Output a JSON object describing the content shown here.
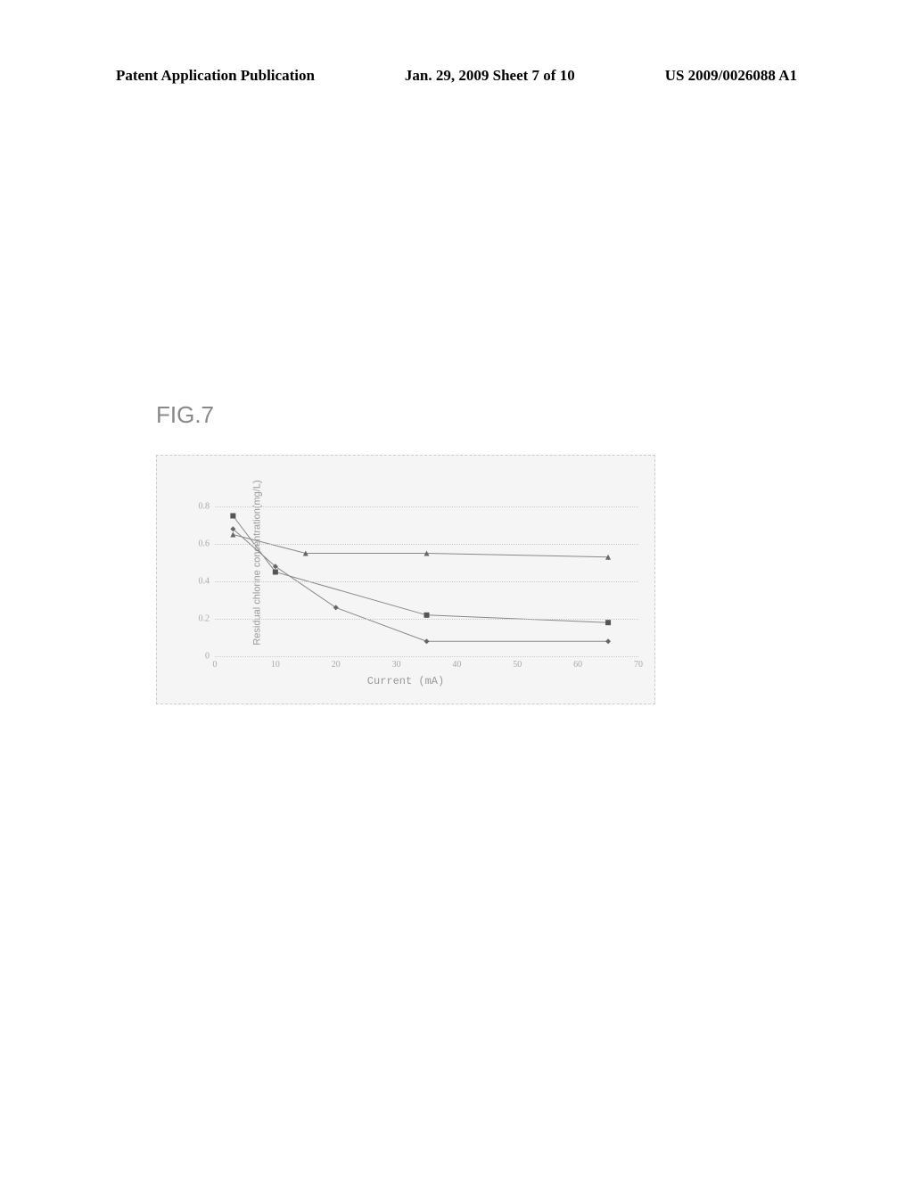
{
  "header": {
    "left": "Patent Application Publication",
    "center": "Jan. 29, 2009  Sheet 7 of 10",
    "right": "US 2009/0026088 A1"
  },
  "figure": {
    "label": "FIG.7",
    "chart": {
      "type": "line",
      "y_axis_label": "Residual chlorine concentration(mg/L)",
      "x_axis_label": "Current (mA)",
      "xlim": [
        0,
        70
      ],
      "ylim": [
        0,
        1.0
      ],
      "x_ticks": [
        0,
        10,
        20,
        30,
        40,
        50,
        60,
        70
      ],
      "y_ticks": [
        0,
        0.2,
        0.4,
        0.6,
        0.8
      ],
      "y_tick_labels": [
        "0",
        "0.2",
        "0.4",
        "0.6",
        "0.8"
      ],
      "x_tick_labels": [
        "0",
        "10",
        "20",
        "30",
        "40",
        "50",
        "60",
        "70"
      ],
      "grid_color": "#cccccc",
      "background_color": "#f5f5f5",
      "series": [
        {
          "marker": "diamond",
          "color": "#666666",
          "line_color": "#888888",
          "x": [
            3,
            10,
            20,
            35,
            65
          ],
          "y": [
            0.68,
            0.48,
            0.26,
            0.08,
            0.08
          ]
        },
        {
          "marker": "square",
          "color": "#555555",
          "line_color": "#888888",
          "x": [
            3,
            10,
            35,
            65
          ],
          "y": [
            0.75,
            0.45,
            0.22,
            0.18
          ]
        },
        {
          "marker": "triangle",
          "color": "#666666",
          "line_color": "#888888",
          "x": [
            3,
            15,
            35,
            65
          ],
          "y": [
            0.65,
            0.55,
            0.55,
            0.53
          ]
        }
      ],
      "line_width": 1,
      "marker_size": 6
    }
  }
}
